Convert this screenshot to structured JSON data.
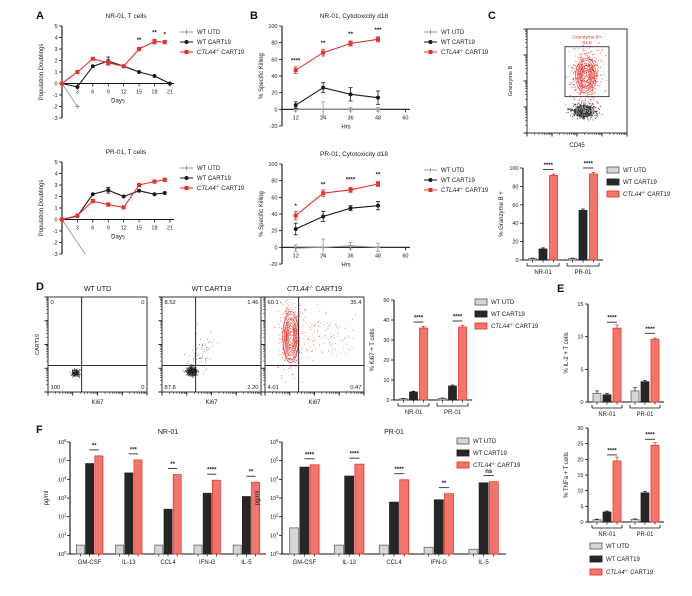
{
  "panels": [
    {
      "label": "A"
    },
    {
      "label": "B"
    },
    {
      "label": "C"
    },
    {
      "label": "D"
    },
    {
      "label": "E"
    },
    {
      "label": "F"
    }
  ],
  "legend_labels": [
    "WT UTD",
    "WT CART19",
    "CTLA4-/- CART19"
  ],
  "colors": {
    "gray": "#9a9a9a",
    "black": "#1a1a1a",
    "red": "#e8312a",
    "bar_utd_fill": "#d6d6d6",
    "bar_utd_stroke": "#666666",
    "bar_wt": "#262626",
    "bar_ko_fill": "#f4766b",
    "bar_ko_stroke": "#e8392e"
  },
  "chart_data": [
    {
      "id": "a1",
      "panel": "A",
      "type": "line",
      "title": "NR-01, T cells",
      "xlabel": "Days",
      "ylabel": "Population Doublings",
      "xlim": [
        0,
        21.8
      ],
      "ylim": [
        -3,
        5
      ],
      "xticks": [
        3,
        6,
        9,
        12,
        15,
        18,
        21
      ],
      "yticks": [
        -3,
        -2,
        -1,
        0,
        1,
        2,
        3,
        4,
        5
      ],
      "series": [
        {
          "name": "WT UTD",
          "color": "gray",
          "marker": "plus",
          "x": [
            0,
            3
          ],
          "y": [
            0,
            -2
          ],
          "err": [
            0,
            0
          ]
        },
        {
          "name": "WT CART19",
          "color": "black",
          "marker": "circle",
          "x": [
            0,
            3,
            6,
            9,
            12,
            15,
            18,
            21
          ],
          "y": [
            0,
            -0.3,
            1.5,
            1.95,
            1.5,
            1.0,
            0.65,
            0
          ],
          "err": [
            0,
            0,
            0,
            0.35,
            0,
            0,
            0,
            0
          ]
        },
        {
          "name": "CTLA4-/- CART19",
          "color": "red",
          "marker": "square",
          "x": [
            0,
            3,
            6,
            9,
            12,
            15,
            18,
            20
          ],
          "y": [
            0,
            1.0,
            2.15,
            1.8,
            1.5,
            3.0,
            3.65,
            3.6
          ],
          "err": [
            0,
            0,
            0,
            0.2,
            0,
            0.15,
            0.2,
            0.15
          ]
        }
      ],
      "annotations": [
        {
          "x": 15,
          "y": 3.6,
          "text": "**"
        },
        {
          "x": 18,
          "y": 4.25,
          "text": "**"
        },
        {
          "x": 20,
          "y": 4.1,
          "text": "*"
        }
      ]
    },
    {
      "id": "a2",
      "panel": "A",
      "type": "line",
      "title": "PR-01, T cells",
      "xlabel": "Days",
      "ylabel": "Population Doublings",
      "xlim": [
        0,
        21.8
      ],
      "ylim": [
        -3,
        5
      ],
      "xticks": [
        3,
        6,
        9,
        12,
        15,
        18,
        21
      ],
      "yticks": [
        -3,
        -2,
        -1,
        0,
        1,
        2,
        3,
        4,
        5
      ],
      "series": [
        {
          "name": "WT UTD",
          "color": "gray",
          "marker": "none",
          "x": [
            0,
            4.5
          ],
          "y": [
            0,
            -3
          ],
          "err": [
            0,
            0
          ]
        },
        {
          "name": "WT CART19",
          "color": "black",
          "marker": "circle",
          "x": [
            0,
            3,
            6,
            9,
            12,
            15,
            18,
            20
          ],
          "y": [
            0,
            0.3,
            2.2,
            2.55,
            2.0,
            2.5,
            2.2,
            2.3
          ],
          "err": [
            0,
            0,
            0,
            0.25,
            0,
            0,
            0,
            0
          ]
        },
        {
          "name": "CTLA4-/- CART19",
          "color": "red",
          "marker": "square",
          "x": [
            0,
            3,
            6,
            9,
            12,
            15,
            18,
            20
          ],
          "y": [
            0,
            0.35,
            1.6,
            1.3,
            1.05,
            3.0,
            3.3,
            3.45
          ],
          "err": [
            0,
            0,
            0.15,
            0.15,
            0.1,
            0.15,
            0.15,
            0.15
          ]
        }
      ],
      "annotations": []
    },
    {
      "id": "b1",
      "panel": "B",
      "type": "line",
      "title": "NR-01, Cytotoxicity d18",
      "xlabel": "Hrs",
      "ylabel": "% Specific Killing",
      "xlim": [
        6,
        62
      ],
      "ylim": [
        -20,
        100
      ],
      "xticks": [
        12,
        24,
        36,
        48,
        60
      ],
      "yticks": [
        -20,
        0,
        20,
        40,
        60,
        80,
        100
      ],
      "series": [
        {
          "name": "WT UTD",
          "color": "gray",
          "marker": "plus",
          "x": [
            12,
            24,
            36,
            48
          ],
          "y": [
            0,
            0,
            0,
            0
          ],
          "err": [
            2,
            9,
            2,
            2
          ]
        },
        {
          "name": "WT CART19",
          "color": "black",
          "marker": "circle",
          "x": [
            12,
            24,
            36,
            48
          ],
          "y": [
            5,
            26,
            18,
            14
          ],
          "err": [
            4,
            6,
            8,
            8
          ]
        },
        {
          "name": "CTLA4-/- CART19",
          "color": "red",
          "marker": "square",
          "x": [
            12,
            24,
            36,
            48
          ],
          "y": [
            47,
            68,
            79,
            84
          ],
          "err": [
            4,
            4,
            3,
            3
          ]
        }
      ],
      "annotations": [
        {
          "x": 12,
          "y": 56,
          "text": "****"
        },
        {
          "x": 24,
          "y": 77,
          "text": "**"
        },
        {
          "x": 36,
          "y": 88,
          "text": "**"
        },
        {
          "x": 48,
          "y": 93,
          "text": "***"
        }
      ]
    },
    {
      "id": "b2",
      "panel": "B",
      "type": "line",
      "title": "PR-01, Cytotoxicity d18",
      "xlabel": "Hrs",
      "ylabel": "% Specific Killing",
      "xlim": [
        6,
        62
      ],
      "ylim": [
        -20,
        100
      ],
      "xticks": [
        12,
        24,
        36,
        48,
        60
      ],
      "yticks": [
        -20,
        0,
        20,
        40,
        60,
        80,
        100
      ],
      "series": [
        {
          "name": "WT UTD",
          "color": "gray",
          "marker": "plus",
          "x": [
            12,
            24,
            36,
            48
          ],
          "y": [
            -1,
            0,
            2,
            0
          ],
          "err": [
            4,
            10,
            4,
            5
          ]
        },
        {
          "name": "WT CART19",
          "color": "black",
          "marker": "circle",
          "x": [
            12,
            24,
            36,
            48
          ],
          "y": [
            22,
            37,
            47,
            50
          ],
          "err": [
            7,
            6,
            3,
            5
          ]
        },
        {
          "name": "CTLA4-/- CART19",
          "color": "red",
          "marker": "square",
          "x": [
            12,
            24,
            36,
            48
          ],
          "y": [
            38,
            65,
            69,
            76
          ],
          "err": [
            5,
            4,
            3,
            3
          ]
        }
      ],
      "annotations": [
        {
          "x": 12,
          "y": 47,
          "text": "*"
        },
        {
          "x": 24,
          "y": 73,
          "text": "**"
        },
        {
          "x": 36,
          "y": 79,
          "text": "****"
        },
        {
          "x": 48,
          "y": 85,
          "text": "**"
        }
      ]
    },
    {
      "id": "cflow",
      "panel": "C",
      "type": "flow",
      "xlabel": "CD45",
      "ylabel": "Granzyme B",
      "gate": {
        "label": "Granzyme B+",
        "value": "91.8"
      }
    },
    {
      "id": "cbar",
      "panel": "C",
      "type": "bar",
      "ylabel": "% Granzyme B +",
      "ylim": [
        0,
        100
      ],
      "yticks": [
        0,
        20,
        40,
        60,
        80,
        100
      ],
      "categories": [
        "NR-01",
        "PR-01"
      ],
      "series": [
        {
          "name": "WT UTD",
          "values": [
            1.5,
            1.5
          ],
          "err": [
            0.5,
            0.5
          ]
        },
        {
          "name": "WT CART19",
          "values": [
            12,
            54
          ],
          "err": [
            1.2,
            1.5
          ]
        },
        {
          "name": "CTLA4-/- CART19",
          "values": [
            92,
            93.5
          ],
          "err": [
            1.5,
            1.5
          ]
        }
      ],
      "sig": [
        "****",
        "****"
      ]
    },
    {
      "id": "d1",
      "panel": "D",
      "type": "flow",
      "title": "WT UTD",
      "xlabel": "Ki67",
      "ylabel": "CART19",
      "quadrants": {
        "tl": "0",
        "tr": "0",
        "bl": "100",
        "br": "0"
      }
    },
    {
      "id": "d2",
      "panel": "D",
      "type": "flow",
      "title": "WT CART19",
      "xlabel": "Ki67",
      "quadrants": {
        "tl": "8.52",
        "tr": "1.46",
        "bl": "87.8",
        "br": "2.20"
      }
    },
    {
      "id": "d3",
      "panel": "D",
      "type": "flow",
      "title": "CTLA4-/- CART19",
      "xlabel": "Ki67",
      "quadrants": {
        "tl": "60.1",
        "tr": "35.4",
        "bl": "4.01",
        "br": "0.47"
      }
    },
    {
      "id": "dbar",
      "panel": "D",
      "type": "bar",
      "ylabel": "% Ki67 + T cells",
      "ylim": [
        0,
        50
      ],
      "yticks": [
        0,
        10,
        20,
        30,
        40,
        50
      ],
      "categories": [
        "NR-01",
        "PR-01"
      ],
      "series": [
        {
          "name": "WT UTD",
          "values": [
            0.6,
            0.8
          ],
          "err": [
            0.2,
            0.2
          ]
        },
        {
          "name": "WT CART19",
          "values": [
            4,
            7
          ],
          "err": [
            0.4,
            0.5
          ]
        },
        {
          "name": "CTLA4-/- CART19",
          "values": [
            36,
            36.5
          ],
          "err": [
            0.8,
            0.8
          ]
        }
      ],
      "sig": [
        "****",
        "****"
      ]
    },
    {
      "id": "e1",
      "panel": "E",
      "type": "bar",
      "ylabel": "% IL-2 + T cells",
      "ylim": [
        0,
        15
      ],
      "yticks": [
        0,
        5,
        10,
        15
      ],
      "categories": [
        "NR-01",
        "PR-01"
      ],
      "series": [
        {
          "name": "WT UTD",
          "values": [
            1.3,
            1.7
          ],
          "err": [
            0.4,
            0.5
          ]
        },
        {
          "name": "WT CART19",
          "values": [
            1.1,
            3.1
          ],
          "err": [
            0.2,
            0.2
          ]
        },
        {
          "name": "CTLA4-/- CART19",
          "values": [
            11.3,
            9.6
          ],
          "err": [
            0.5,
            0.2
          ]
        }
      ],
      "sig": [
        "****",
        "****"
      ]
    },
    {
      "id": "e2",
      "panel": "E",
      "type": "bar",
      "ylabel": "% TNFa + T cells",
      "ylim": [
        0,
        30
      ],
      "yticks": [
        0,
        5,
        10,
        15,
        20,
        25,
        30
      ],
      "categories": [
        "NR-01",
        "PR-01"
      ],
      "series": [
        {
          "name": "WT UTD",
          "values": [
            0.7,
            0.8
          ],
          "err": [
            0.2,
            0.2
          ]
        },
        {
          "name": "WT CART19",
          "values": [
            3.2,
            9.3
          ],
          "err": [
            0.3,
            0.4
          ]
        },
        {
          "name": "CTLA4-/- CART19",
          "values": [
            19.5,
            24.5
          ],
          "err": [
            1.2,
            0.8
          ]
        }
      ],
      "sig": [
        "****",
        "****"
      ]
    },
    {
      "id": "f1",
      "panel": "F",
      "type": "bar",
      "log": true,
      "title": "NR-01",
      "ylabel": "pg/ml",
      "ylim": [
        1,
        1000000
      ],
      "categories": [
        "GM-CSF",
        "IL-13",
        "CCL4",
        "IFN-G",
        "IL-5"
      ],
      "series": [
        {
          "name": "WT UTD",
          "values": [
            3,
            3,
            3,
            3,
            3
          ]
        },
        {
          "name": "WT CART19",
          "values": [
            70000,
            22000,
            250,
            1800,
            1200
          ]
        },
        {
          "name": "CTLA4-/- CART19",
          "values": [
            180000,
            110000,
            18000,
            9000,
            7000
          ]
        }
      ],
      "sig": [
        "**",
        "***",
        "**",
        "****",
        "**"
      ]
    },
    {
      "id": "f2",
      "panel": "F",
      "type": "bar",
      "log": true,
      "title": "PR-01",
      "ylabel": "pg/ml",
      "ylim": [
        1,
        1000000
      ],
      "categories": [
        "GM-CSF",
        "IL-13",
        "CCL4",
        "IFN-G",
        "IL-5"
      ],
      "series": [
        {
          "name": "WT UTD",
          "values": [
            25,
            3,
            3,
            2.3,
            1.8
          ]
        },
        {
          "name": "WT CART19",
          "values": [
            45000,
            15000,
            600,
            800,
            6500
          ]
        },
        {
          "name": "CTLA4-/- CART19",
          "values": [
            60000,
            65000,
            9500,
            1700,
            7500
          ]
        }
      ],
      "sig": [
        "****",
        "****",
        "****",
        "**",
        "ns"
      ]
    }
  ]
}
